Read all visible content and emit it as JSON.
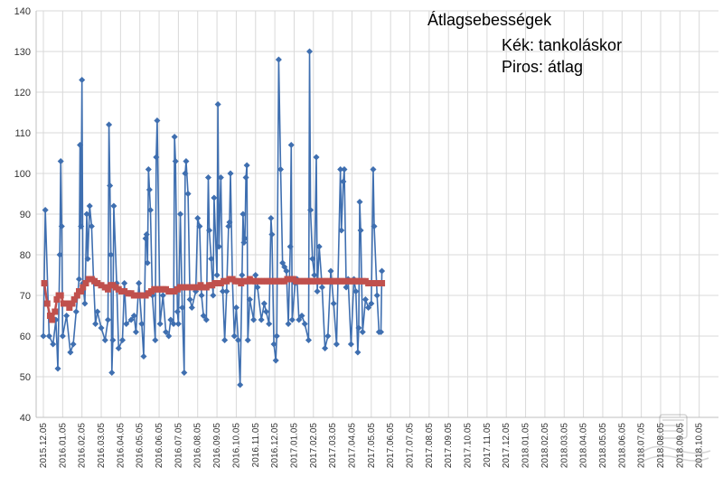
{
  "chart_data": {
    "type": "line",
    "annotations": {
      "title": "Átlagsebességek",
      "line1": "Kék: tankoláskor",
      "line2": "Piros: átlag"
    },
    "ylim": [
      40,
      140
    ],
    "yticks": [
      40,
      50,
      60,
      70,
      80,
      90,
      100,
      110,
      120,
      130,
      140
    ],
    "xlabels": [
      "2015.12.05",
      "2016.01.05",
      "2016.02.05",
      "2016.03.05",
      "2016.04.05",
      "2016.05.05",
      "2016.06.05",
      "2016.07.05",
      "2016.08.05",
      "2016.09.05",
      "2016.10.05",
      "2016.11.05",
      "2016.12.05",
      "2017.01.05",
      "2017.02.05",
      "2017.03.05",
      "2017.04.05",
      "2017.05.05",
      "2017.06.05",
      "2017.07.05",
      "2017.08.05",
      "2017.09.05",
      "2017.10.05",
      "2017.11.05",
      "2017.12.05",
      "2018.01.05",
      "2018.02.05",
      "2018.03.05",
      "2018.04.05",
      "2018.05.05",
      "2018.06.05",
      "2018.07.05",
      "2018.08.05",
      "2018.09.05",
      "2018.10.05"
    ],
    "grid": true,
    "colors": {
      "refuel": "#3f6fb0",
      "average": "#c0504d"
    },
    "series": [
      {
        "role": "refuel",
        "points": [
          [
            0.0,
            60
          ],
          [
            0.1,
            91
          ],
          [
            0.3,
            60
          ],
          [
            0.5,
            58
          ],
          [
            0.65,
            64
          ],
          [
            0.75,
            52
          ],
          [
            0.85,
            80
          ],
          [
            0.9,
            103
          ],
          [
            0.95,
            87
          ],
          [
            1.0,
            60
          ],
          [
            1.2,
            65
          ],
          [
            1.4,
            56
          ],
          [
            1.55,
            58
          ],
          [
            1.7,
            66
          ],
          [
            1.85,
            74
          ],
          [
            1.9,
            107
          ],
          [
            1.95,
            87
          ],
          [
            2.0,
            123
          ],
          [
            2.05,
            73
          ],
          [
            2.15,
            68
          ],
          [
            2.25,
            90
          ],
          [
            2.3,
            79
          ],
          [
            2.4,
            92
          ],
          [
            2.5,
            87
          ],
          [
            2.6,
            74
          ],
          [
            2.7,
            63
          ],
          [
            2.8,
            66
          ],
          [
            3.0,
            62
          ],
          [
            3.2,
            59
          ],
          [
            3.35,
            64
          ],
          [
            3.4,
            112
          ],
          [
            3.45,
            97
          ],
          [
            3.5,
            80
          ],
          [
            3.55,
            51
          ],
          [
            3.6,
            59
          ],
          [
            3.65,
            92
          ],
          [
            3.8,
            73
          ],
          [
            3.9,
            57
          ],
          [
            4.1,
            59
          ],
          [
            4.2,
            73
          ],
          [
            4.3,
            63
          ],
          [
            4.55,
            64
          ],
          [
            4.7,
            65
          ],
          [
            4.8,
            61
          ],
          [
            4.95,
            73
          ],
          [
            5.1,
            63
          ],
          [
            5.2,
            55
          ],
          [
            5.3,
            84
          ],
          [
            5.35,
            85
          ],
          [
            5.4,
            78
          ],
          [
            5.45,
            101
          ],
          [
            5.5,
            96
          ],
          [
            5.55,
            91
          ],
          [
            5.65,
            70
          ],
          [
            5.8,
            59
          ],
          [
            5.85,
            104
          ],
          [
            5.9,
            113
          ],
          [
            6.05,
            63
          ],
          [
            6.2,
            70
          ],
          [
            6.35,
            61
          ],
          [
            6.5,
            60
          ],
          [
            6.6,
            64
          ],
          [
            6.75,
            63
          ],
          [
            6.8,
            109
          ],
          [
            6.85,
            103
          ],
          [
            6.95,
            66
          ],
          [
            7.0,
            63
          ],
          [
            7.1,
            90
          ],
          [
            7.2,
            67
          ],
          [
            7.3,
            51
          ],
          [
            7.35,
            100
          ],
          [
            7.4,
            103
          ],
          [
            7.5,
            95
          ],
          [
            7.6,
            69
          ],
          [
            7.7,
            67
          ],
          [
            7.9,
            71
          ],
          [
            8.0,
            89
          ],
          [
            8.1,
            87
          ],
          [
            8.2,
            70
          ],
          [
            8.3,
            65
          ],
          [
            8.45,
            64
          ],
          [
            8.55,
            99
          ],
          [
            8.6,
            86
          ],
          [
            8.7,
            79
          ],
          [
            8.8,
            70
          ],
          [
            8.85,
            94
          ],
          [
            9.0,
            75
          ],
          [
            9.05,
            117
          ],
          [
            9.1,
            82
          ],
          [
            9.2,
            99
          ],
          [
            9.3,
            71
          ],
          [
            9.4,
            59
          ],
          [
            9.5,
            71
          ],
          [
            9.6,
            87
          ],
          [
            9.65,
            88
          ],
          [
            9.7,
            100
          ],
          [
            9.8,
            74
          ],
          [
            9.9,
            60
          ],
          [
            10.0,
            67
          ],
          [
            10.1,
            59
          ],
          [
            10.2,
            48
          ],
          [
            10.3,
            75
          ],
          [
            10.35,
            90
          ],
          [
            10.4,
            83
          ],
          [
            10.45,
            84
          ],
          [
            10.5,
            99
          ],
          [
            10.55,
            102
          ],
          [
            10.6,
            59
          ],
          [
            10.7,
            69
          ],
          [
            10.9,
            64
          ],
          [
            11.0,
            75
          ],
          [
            11.1,
            72
          ],
          [
            11.3,
            64
          ],
          [
            11.45,
            68
          ],
          [
            11.55,
            66
          ],
          [
            11.7,
            63
          ],
          [
            11.8,
            89
          ],
          [
            11.85,
            85
          ],
          [
            11.95,
            58
          ],
          [
            12.05,
            54
          ],
          [
            12.1,
            60
          ],
          [
            12.2,
            128
          ],
          [
            12.3,
            101
          ],
          [
            12.4,
            78
          ],
          [
            12.5,
            77
          ],
          [
            12.6,
            76
          ],
          [
            12.7,
            63
          ],
          [
            12.8,
            82
          ],
          [
            12.85,
            107
          ],
          [
            12.9,
            64
          ],
          [
            13.05,
            73
          ],
          [
            13.15,
            74
          ],
          [
            13.25,
            64
          ],
          [
            13.4,
            65
          ],
          [
            13.55,
            63
          ],
          [
            13.75,
            59
          ],
          [
            13.8,
            130
          ],
          [
            13.85,
            91
          ],
          [
            13.95,
            79
          ],
          [
            14.05,
            75
          ],
          [
            14.15,
            104
          ],
          [
            14.2,
            71
          ],
          [
            14.3,
            82
          ],
          [
            14.45,
            72
          ],
          [
            14.6,
            57
          ],
          [
            14.75,
            60
          ],
          [
            14.9,
            76
          ],
          [
            15.05,
            68
          ],
          [
            15.2,
            58
          ],
          [
            15.4,
            101
          ],
          [
            15.45,
            86
          ],
          [
            15.55,
            98
          ],
          [
            15.6,
            101
          ],
          [
            15.7,
            72
          ],
          [
            15.8,
            74
          ],
          [
            15.95,
            58
          ],
          [
            16.1,
            74
          ],
          [
            16.2,
            71
          ],
          [
            16.3,
            56
          ],
          [
            16.35,
            62
          ],
          [
            16.4,
            93
          ],
          [
            16.45,
            86
          ],
          [
            16.55,
            61
          ],
          [
            16.7,
            69
          ],
          [
            16.85,
            67
          ],
          [
            17.0,
            68
          ],
          [
            17.1,
            101
          ],
          [
            17.15,
            87
          ],
          [
            17.3,
            70
          ],
          [
            17.4,
            61
          ],
          [
            17.5,
            61
          ],
          [
            17.55,
            76
          ]
        ]
      },
      {
        "role": "average",
        "points": [
          [
            0.05,
            73
          ],
          [
            0.2,
            68
          ],
          [
            0.35,
            65
          ],
          [
            0.45,
            64
          ],
          [
            0.6,
            66
          ],
          [
            0.7,
            69
          ],
          [
            0.8,
            70
          ],
          [
            0.9,
            70
          ],
          [
            1.05,
            68
          ],
          [
            1.2,
            68
          ],
          [
            1.35,
            67
          ],
          [
            1.5,
            68
          ],
          [
            1.6,
            69
          ],
          [
            1.75,
            70
          ],
          [
            1.85,
            71
          ],
          [
            1.95,
            71
          ],
          [
            2.05,
            72
          ],
          [
            2.2,
            73
          ],
          [
            2.35,
            74
          ],
          [
            2.5,
            74
          ],
          [
            2.65,
            73.5
          ],
          [
            2.8,
            73
          ],
          [
            3.0,
            72.5
          ],
          [
            3.2,
            72
          ],
          [
            3.35,
            71.5
          ],
          [
            3.5,
            72.5
          ],
          [
            3.6,
            72.5
          ],
          [
            3.75,
            72
          ],
          [
            3.9,
            71.5
          ],
          [
            4.05,
            71
          ],
          [
            4.2,
            71
          ],
          [
            4.4,
            70.5
          ],
          [
            4.55,
            70.5
          ],
          [
            4.7,
            70
          ],
          [
            4.85,
            70
          ],
          [
            5.0,
            70
          ],
          [
            5.15,
            70
          ],
          [
            5.3,
            70
          ],
          [
            5.45,
            70.5
          ],
          [
            5.6,
            71
          ],
          [
            5.75,
            71.5
          ],
          [
            5.9,
            71.5
          ],
          [
            6.05,
            71.5
          ],
          [
            6.2,
            71.5
          ],
          [
            6.35,
            71.5
          ],
          [
            6.5,
            71
          ],
          [
            6.65,
            71
          ],
          [
            6.8,
            71
          ],
          [
            6.95,
            71.5
          ],
          [
            7.1,
            72
          ],
          [
            7.25,
            72
          ],
          [
            7.4,
            72
          ],
          [
            7.55,
            72
          ],
          [
            7.7,
            72
          ],
          [
            7.85,
            72
          ],
          [
            8.0,
            72
          ],
          [
            8.15,
            72.5
          ],
          [
            8.3,
            72
          ],
          [
            8.45,
            72
          ],
          [
            8.6,
            72.5
          ],
          [
            8.75,
            72.5
          ],
          [
            8.9,
            73
          ],
          [
            9.05,
            73
          ],
          [
            9.2,
            73
          ],
          [
            9.35,
            73.5
          ],
          [
            9.5,
            73.5
          ],
          [
            9.65,
            74
          ],
          [
            9.8,
            74
          ],
          [
            9.95,
            73.5
          ],
          [
            10.1,
            73.5
          ],
          [
            10.25,
            73
          ],
          [
            10.4,
            73.5
          ],
          [
            10.55,
            73.5
          ],
          [
            10.7,
            74
          ],
          [
            10.85,
            73.5
          ],
          [
            11.0,
            73.5
          ],
          [
            11.15,
            73.5
          ],
          [
            11.3,
            73.5
          ],
          [
            11.45,
            73.5
          ],
          [
            11.6,
            73.5
          ],
          [
            11.75,
            73.5
          ],
          [
            11.9,
            73.5
          ],
          [
            12.05,
            73.5
          ],
          [
            12.2,
            73.5
          ],
          [
            12.35,
            73.5
          ],
          [
            12.5,
            73.5
          ],
          [
            12.65,
            74
          ],
          [
            12.8,
            74
          ],
          [
            12.95,
            74
          ],
          [
            13.1,
            73.5
          ],
          [
            13.25,
            73.5
          ],
          [
            13.4,
            73.5
          ],
          [
            13.55,
            73.5
          ],
          [
            13.7,
            73.5
          ],
          [
            13.85,
            73.5
          ],
          [
            14.0,
            73.5
          ],
          [
            14.15,
            73.5
          ],
          [
            14.3,
            73.5
          ],
          [
            14.45,
            73.5
          ],
          [
            14.6,
            73.5
          ],
          [
            14.75,
            73.5
          ],
          [
            14.9,
            73.5
          ],
          [
            15.05,
            73.5
          ],
          [
            15.2,
            73.5
          ],
          [
            15.35,
            73.5
          ],
          [
            15.5,
            73.5
          ],
          [
            15.65,
            73.5
          ],
          [
            15.8,
            73.5
          ],
          [
            15.95,
            73.5
          ],
          [
            16.1,
            73.5
          ],
          [
            16.25,
            73.5
          ],
          [
            16.4,
            73.5
          ],
          [
            16.55,
            73.5
          ],
          [
            16.7,
            73.5
          ],
          [
            16.85,
            73
          ],
          [
            17.0,
            73
          ],
          [
            17.15,
            73
          ],
          [
            17.3,
            73
          ],
          [
            17.45,
            73
          ],
          [
            17.55,
            73
          ]
        ]
      }
    ]
  }
}
